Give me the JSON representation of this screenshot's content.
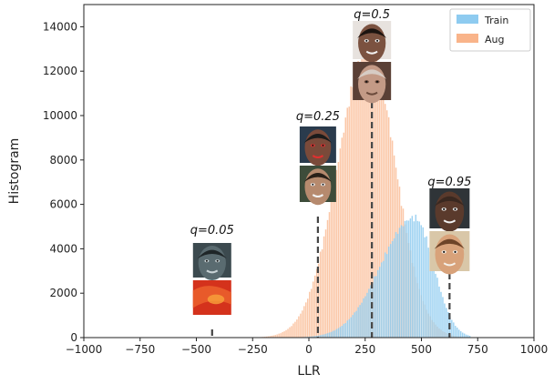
{
  "chart_data": {
    "type": "bar",
    "subtype": "histogram",
    "xlabel": "LLR",
    "ylabel": "Histogram",
    "xlim": [
      -1000,
      1000
    ],
    "ylim": [
      0,
      15000
    ],
    "xticks": [
      -1000,
      -750,
      -500,
      -250,
      0,
      250,
      500,
      750,
      1000
    ],
    "yticks": [
      0,
      2000,
      4000,
      6000,
      8000,
      10000,
      12000,
      14000
    ],
    "legend_position": "top-right",
    "series": [
      {
        "name": "Train",
        "color": "#8ecbf0",
        "shape": "skewed",
        "peak_x": 470,
        "peak_y": 5400,
        "left_scale": 150,
        "right_scale": 85,
        "x_min": -350,
        "x_max": 720
      },
      {
        "name": "Aug",
        "color": "#f9b48a",
        "shape": "normal",
        "peak_x": 265,
        "peak_y": 13000,
        "left_scale": 135,
        "right_scale": 120,
        "x_min": -560,
        "x_max": 680
      }
    ],
    "quantiles": [
      {
        "label": "q=0.05",
        "x": -430,
        "images": [
          "face-dark-mask",
          "red-texture"
        ]
      },
      {
        "label": "q=0.25",
        "x": 40,
        "images": [
          "face-painted",
          "face-smiling"
        ]
      },
      {
        "label": "q=0.5",
        "x": 280,
        "images": [
          "face-young-man",
          "face-elderly-woman"
        ]
      },
      {
        "label": "q=0.95",
        "x": 625,
        "images": [
          "face-bald-man",
          "face-child"
        ]
      }
    ]
  }
}
